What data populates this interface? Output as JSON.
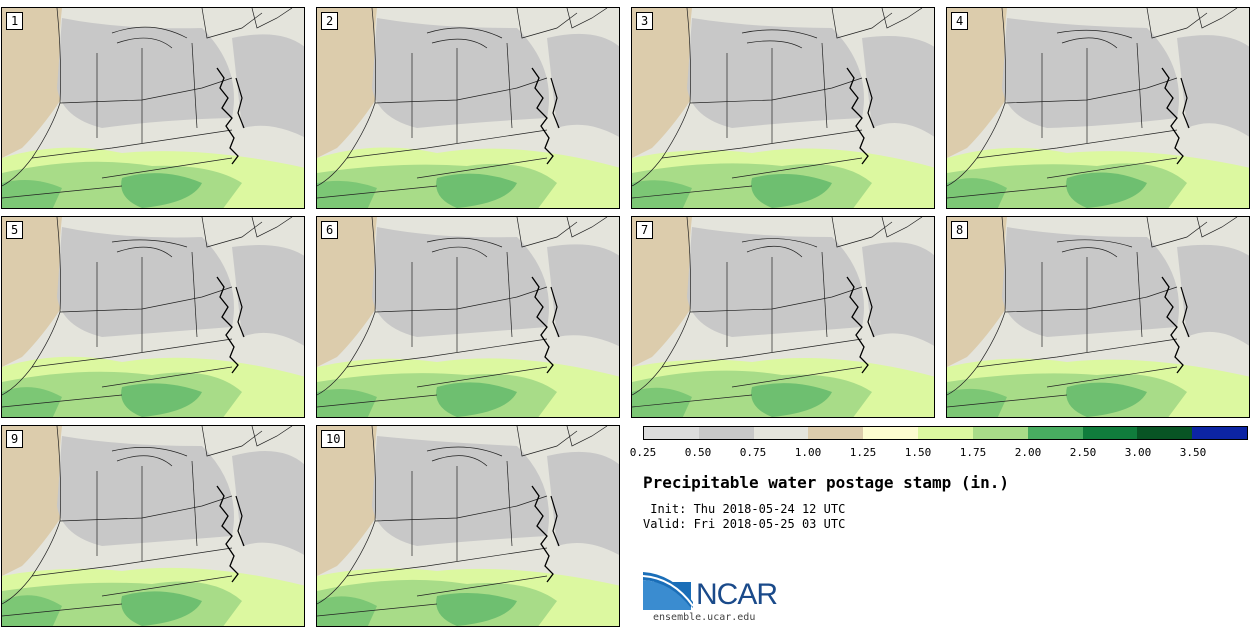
{
  "panels": [
    {
      "label": "1"
    },
    {
      "label": "2"
    },
    {
      "label": "3"
    },
    {
      "label": "4"
    },
    {
      "label": "5"
    },
    {
      "label": "6"
    },
    {
      "label": "7"
    },
    {
      "label": "8"
    },
    {
      "label": "9"
    },
    {
      "label": "10"
    }
  ],
  "colorbar": {
    "colors": [
      "#dcdcdc",
      "#c8c8c8",
      "#e4e4dc",
      "#dcccac",
      "#fcfcd0",
      "#dcf8a0",
      "#a8dc88",
      "#48ac60",
      "#107c3c",
      "#085424",
      "#0c24a4"
    ],
    "ticks": [
      "0.25",
      "0.50",
      "0.75",
      "1.00",
      "1.25",
      "1.50",
      "1.75",
      "2.00",
      "2.50",
      "3.00",
      "3.50"
    ]
  },
  "title": "Precipitable water postage stamp (in.)",
  "init": " Init: Thu 2018-05-24 12 UTC",
  "valid": "Valid: Fri 2018-05-25 03 UTC",
  "logo": {
    "name": "NCAR",
    "url": "ensemble.ucar.edu"
  }
}
